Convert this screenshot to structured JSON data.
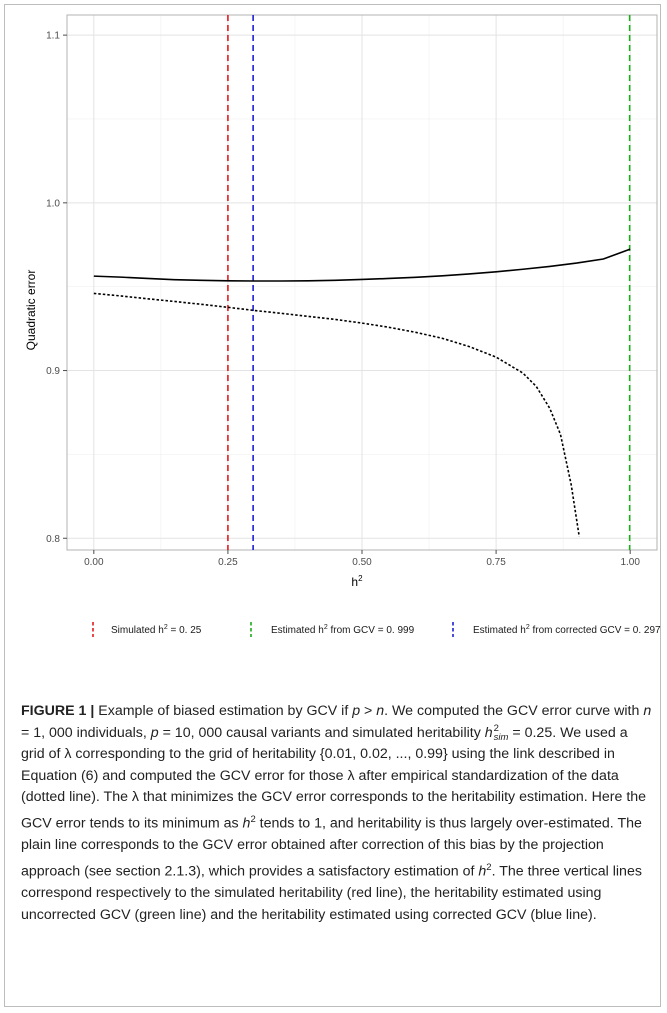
{
  "chart_data": {
    "type": "line",
    "xlabel": "h",
    "xlabel_sup": "2",
    "ylabel": "Quadratic error",
    "xlim": [
      -0.05,
      1.05
    ],
    "ylim": [
      0.793,
      1.112
    ],
    "x_ticks": [
      0.0,
      0.25,
      0.5,
      0.75,
      1.0
    ],
    "x_tick_labels": [
      "0.00",
      "0.25",
      "0.50",
      "0.75",
      "1.00"
    ],
    "y_ticks": [
      0.8,
      0.9,
      1.0,
      1.1
    ],
    "y_tick_labels": [
      "0.8",
      "0.9",
      "1.0",
      "1.1"
    ],
    "grid": true,
    "legend_position": "bottom",
    "series": [
      {
        "style": "solid",
        "color": "#000000",
        "x": [
          0.0,
          0.05,
          0.1,
          0.15,
          0.2,
          0.25,
          0.3,
          0.35,
          0.4,
          0.45,
          0.5,
          0.55,
          0.6,
          0.65,
          0.7,
          0.75,
          0.8,
          0.85,
          0.9,
          0.95,
          1.0
        ],
        "y": [
          0.9563,
          0.9557,
          0.9549,
          0.9542,
          0.9538,
          0.9535,
          0.9534,
          0.9534,
          0.9535,
          0.9538,
          0.9543,
          0.9549,
          0.9556,
          0.9565,
          0.9576,
          0.9589,
          0.9604,
          0.9621,
          0.9641,
          0.9665,
          0.9724
        ]
      },
      {
        "style": "dotted",
        "color": "#000000",
        "x": [
          0.0,
          0.05,
          0.1,
          0.15,
          0.2,
          0.25,
          0.3,
          0.35,
          0.4,
          0.45,
          0.5,
          0.55,
          0.6,
          0.65,
          0.7,
          0.75,
          0.8,
          0.825,
          0.85,
          0.87,
          0.89,
          0.905
        ],
        "y": [
          0.946,
          0.9445,
          0.9428,
          0.9412,
          0.9395,
          0.9377,
          0.9358,
          0.9341,
          0.9323,
          0.9305,
          0.9283,
          0.9258,
          0.9228,
          0.9192,
          0.9143,
          0.908,
          0.8985,
          0.8905,
          0.8775,
          0.862,
          0.832,
          0.801
        ]
      }
    ],
    "vlines": [
      {
        "x": 0.25,
        "color": "#e41a1c",
        "label": "Simulated h",
        "sup": "2",
        "value_text": " = 0. 25"
      },
      {
        "x": 0.999,
        "color": "#1aad1a",
        "label": "Estimated h",
        "sup": "2",
        "value_text": " from GCV = 0. 999"
      },
      {
        "x": 0.297,
        "color": "#1f1fd4",
        "label": "Estimated h",
        "sup": "2",
        "value_text": " from corrected GCV = 0. 297"
      }
    ]
  },
  "caption": {
    "label": "FIGURE 1 |",
    "s1": " Example of biased estimation by GCV if ",
    "p": "p",
    "gt": " > ",
    "n": "n",
    "s2": ". We computed the GCV error curve with ",
    "n2": "n",
    "s3": " = 1, 000 individuals, ",
    "p2": "p",
    "s4": " = 10, 000 causal variants and simulated heritability ",
    "h": "h",
    "hsup": "2",
    "hsub": "sim",
    "s5": " = 0.25. We used a grid of λ corresponding to the grid of heritability {0.01, 0.02, ..., 0.99} using the link described in Equation (6) and computed the GCV error for those λ after empirical standardization of the data (dotted line). The λ that minimizes the GCV error corresponds to the heritability estimation. Here the GCV error tends to its minimum as ",
    "h2": "h",
    "h2sup": "2",
    "s6": " tends to 1, and heritability is thus largely over-estimated. The plain line corresponds to the GCV error obtained after correction of this bias by the projection approach (see section 2.1.3), which provides a satisfactory estimation of ",
    "h3": "h",
    "h3sup": "2",
    "s7": ". The three vertical lines correspond respectively to the simulated heritability (red line), the heritability estimated using uncorrected GCV (green line) and the heritability estimated using corrected GCV (blue line)."
  }
}
